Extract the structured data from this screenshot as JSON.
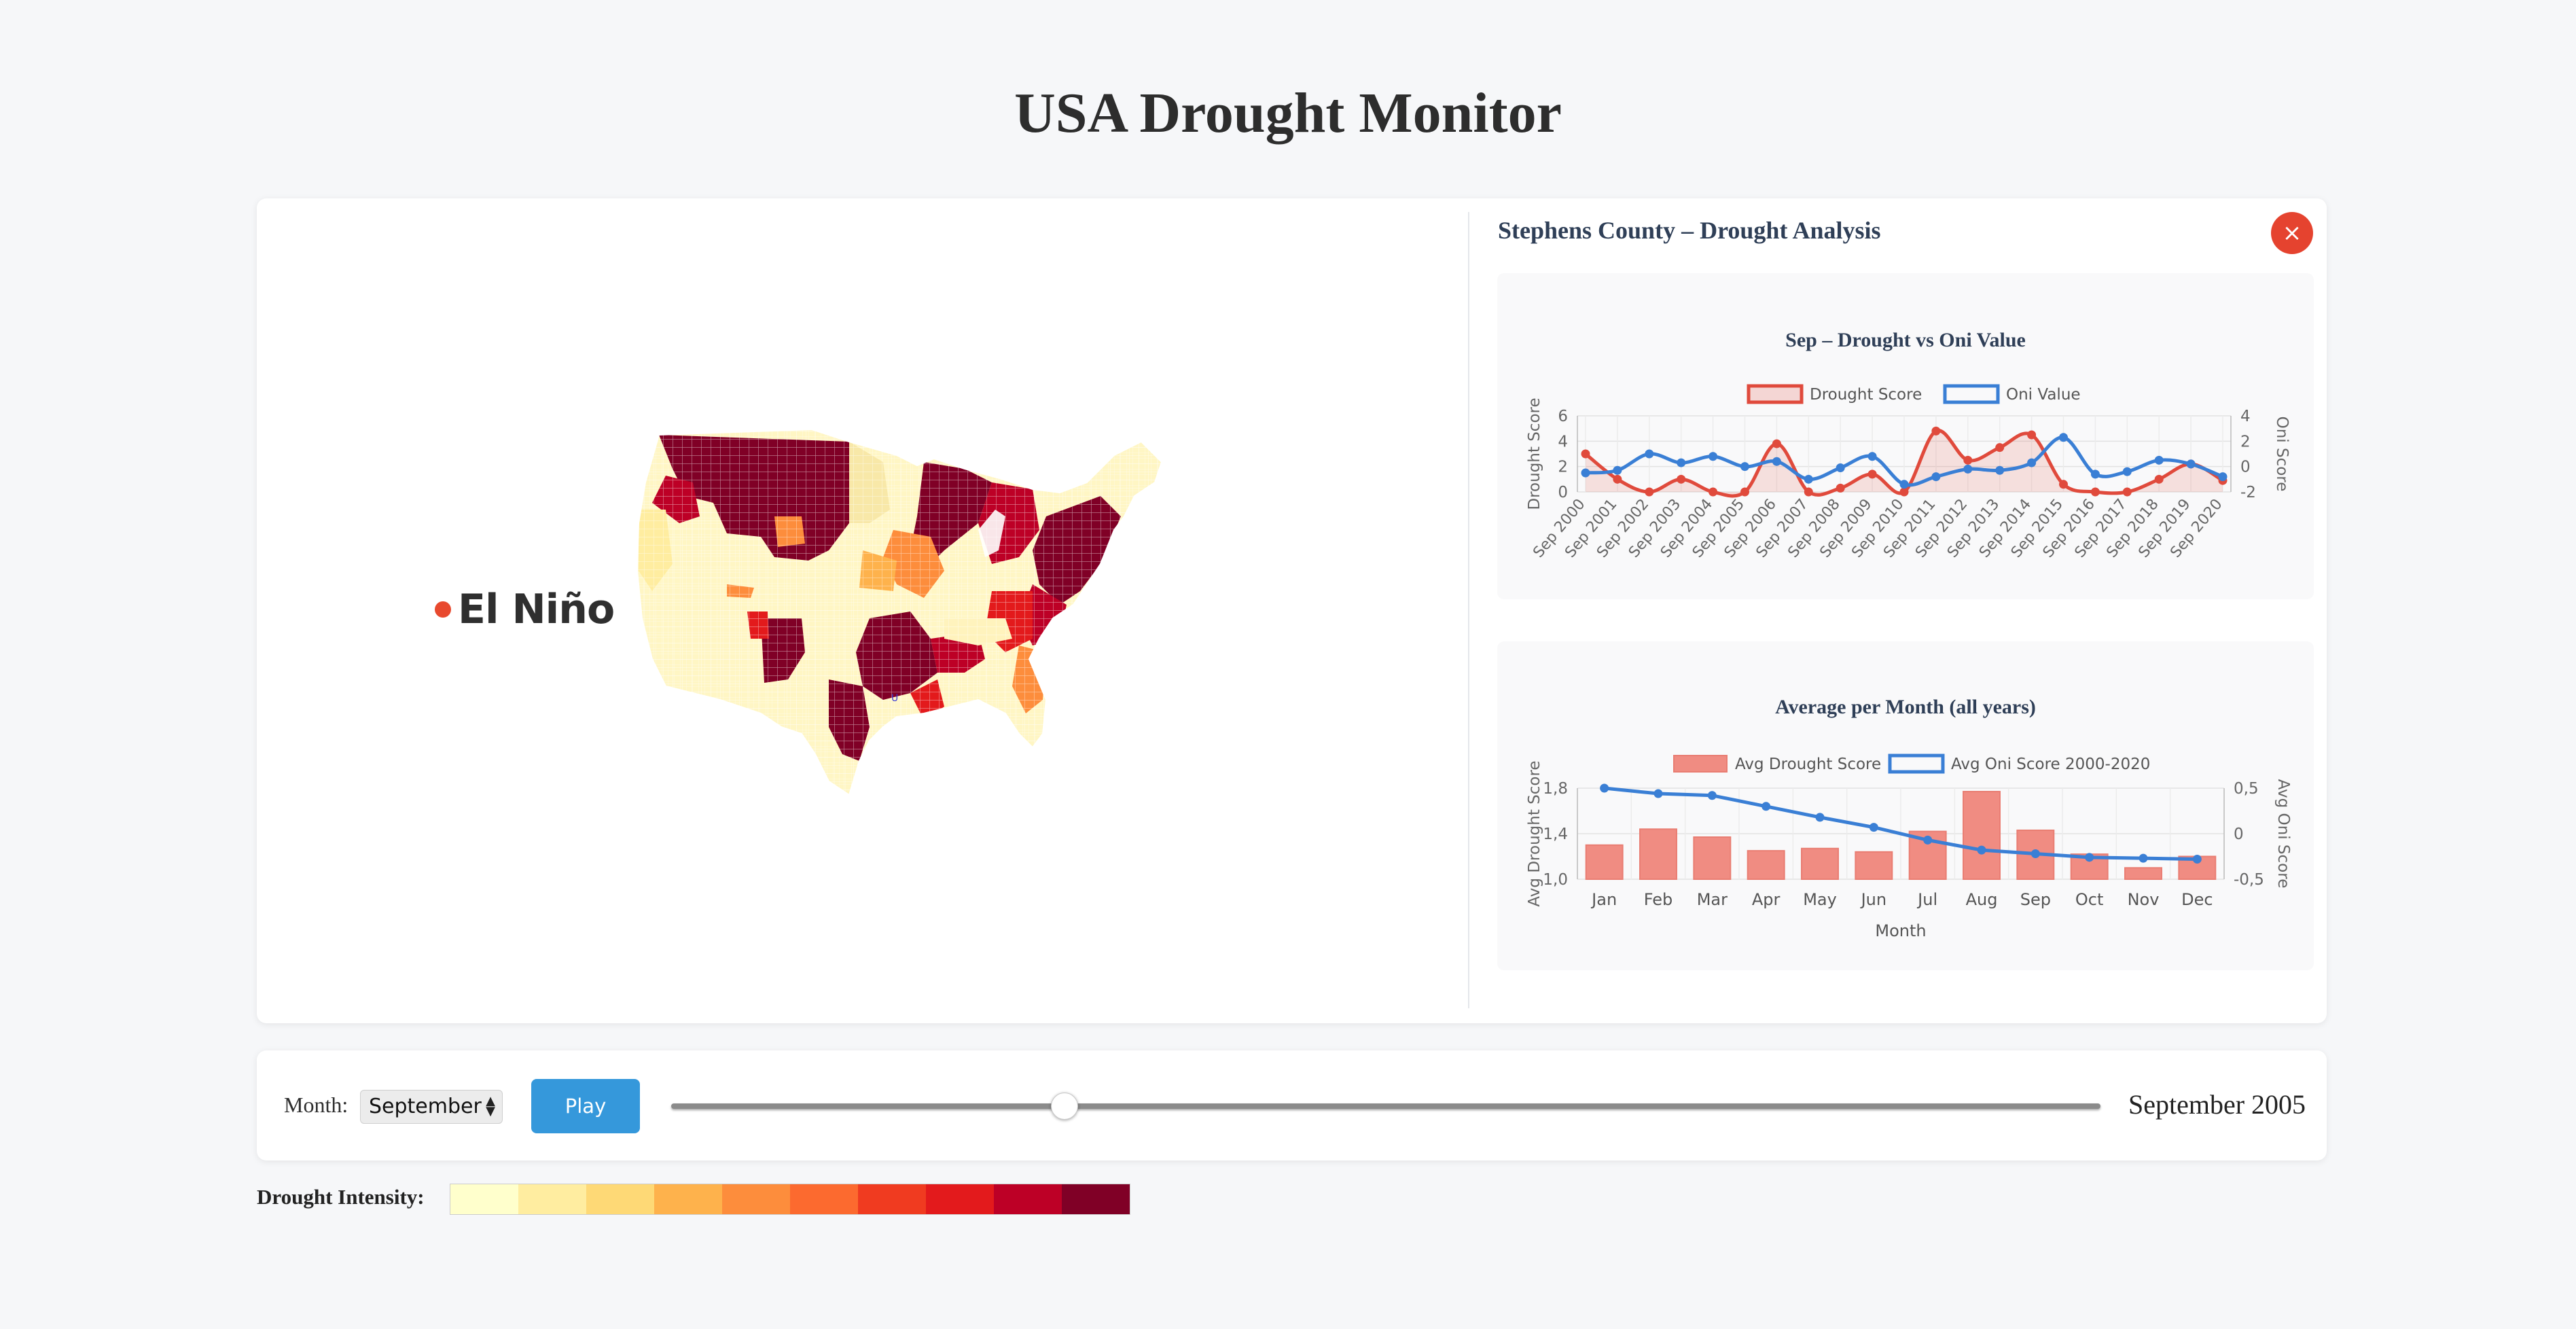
{
  "page": {
    "title": "USA Drought Monitor"
  },
  "map": {
    "enso_label": "El Niño",
    "enso_color": "#e8492e",
    "marker_label": "U"
  },
  "detail": {
    "title": "Stephens County – Drought Analysis",
    "close_label": "×"
  },
  "chart_data": [
    {
      "type": "line",
      "title": "Sep – Drought vs Oni Value",
      "categories": [
        "Sep 2000",
        "Sep 2001",
        "Sep 2002",
        "Sep 2003",
        "Sep 2004",
        "Sep 2005",
        "Sep 2006",
        "Sep 2007",
        "Sep 2008",
        "Sep 2009",
        "Sep 2010",
        "Sep 2011",
        "Sep 2012",
        "Sep 2013",
        "Sep 2014",
        "Sep 2015",
        "Sep 2016",
        "Sep 2017",
        "Sep 2018",
        "Sep 2019",
        "Sep 2020"
      ],
      "series": [
        {
          "name": "Drought Score",
          "axis": "left",
          "color": "#e04a3c",
          "fill": true,
          "values": [
            3,
            1,
            0,
            1,
            0,
            0,
            3.8,
            0,
            0.3,
            1.4,
            0,
            4.8,
            2.5,
            3.5,
            4.5,
            0.6,
            0,
            0,
            1,
            2.2,
            0.9
          ]
        },
        {
          "name": "Oni Value",
          "axis": "right",
          "color": "#3a7fd5",
          "fill": false,
          "values": [
            -0.5,
            -0.3,
            1.0,
            0.3,
            0.8,
            0.0,
            0.4,
            -1.0,
            -0.1,
            0.8,
            -1.4,
            -0.8,
            -0.2,
            -0.3,
            0.3,
            2.3,
            -0.6,
            -0.4,
            0.5,
            0.2,
            -0.8
          ]
        }
      ],
      "ylabel": "Drought Score",
      "y2label": "Oni Score",
      "ylim": [
        0,
        6
      ],
      "y2lim": [
        -2,
        4
      ],
      "yticks": [
        0,
        2,
        4,
        6
      ],
      "y2ticks": [
        -2,
        0,
        2,
        4
      ],
      "legend": "top",
      "grid": true
    },
    {
      "type": "bar",
      "title": "Average per Month (all years)",
      "categories": [
        "Jan",
        "Feb",
        "Mar",
        "Apr",
        "May",
        "Jun",
        "Jul",
        "Aug",
        "Sep",
        "Oct",
        "Nov",
        "Dec"
      ],
      "series": [
        {
          "name": "Avg Drought Score",
          "axis": "left",
          "type": "bar",
          "color": "#f08c82",
          "values": [
            1.3,
            1.44,
            1.37,
            1.25,
            1.27,
            1.24,
            1.42,
            1.77,
            1.43,
            1.22,
            1.1,
            1.2
          ]
        },
        {
          "name": "Avg Oni Score 2000-2020",
          "axis": "right",
          "type": "line",
          "color": "#3a7fd5",
          "values": [
            0.5,
            0.44,
            0.42,
            0.3,
            0.18,
            0.07,
            -0.07,
            -0.18,
            -0.22,
            -0.26,
            -0.27,
            -0.28
          ]
        }
      ],
      "xlabel": "Month",
      "ylabel": "Avg Drought Score",
      "y2label": "Avg Oni Score",
      "ylim": [
        1.0,
        1.8
      ],
      "y2lim": [
        -0.5,
        0.5
      ],
      "yticks": [
        "1,0",
        "1,4",
        "1,8"
      ],
      "y2ticks": [
        "-0,5",
        "0",
        "0,5"
      ],
      "legend": "top",
      "grid": true
    }
  ],
  "controls": {
    "month_label": "Month:",
    "month_value": "September",
    "play_label": "Play",
    "slider_fraction": 0.275,
    "date_display": "September 2005"
  },
  "legend": {
    "label": "Drought Intensity:",
    "colors": [
      "#ffffcc",
      "#ffeda0",
      "#fed976",
      "#feb24c",
      "#fd8d3c",
      "#fc6a2f",
      "#f03b20",
      "#e31a1c",
      "#bd0026",
      "#800026"
    ]
  }
}
